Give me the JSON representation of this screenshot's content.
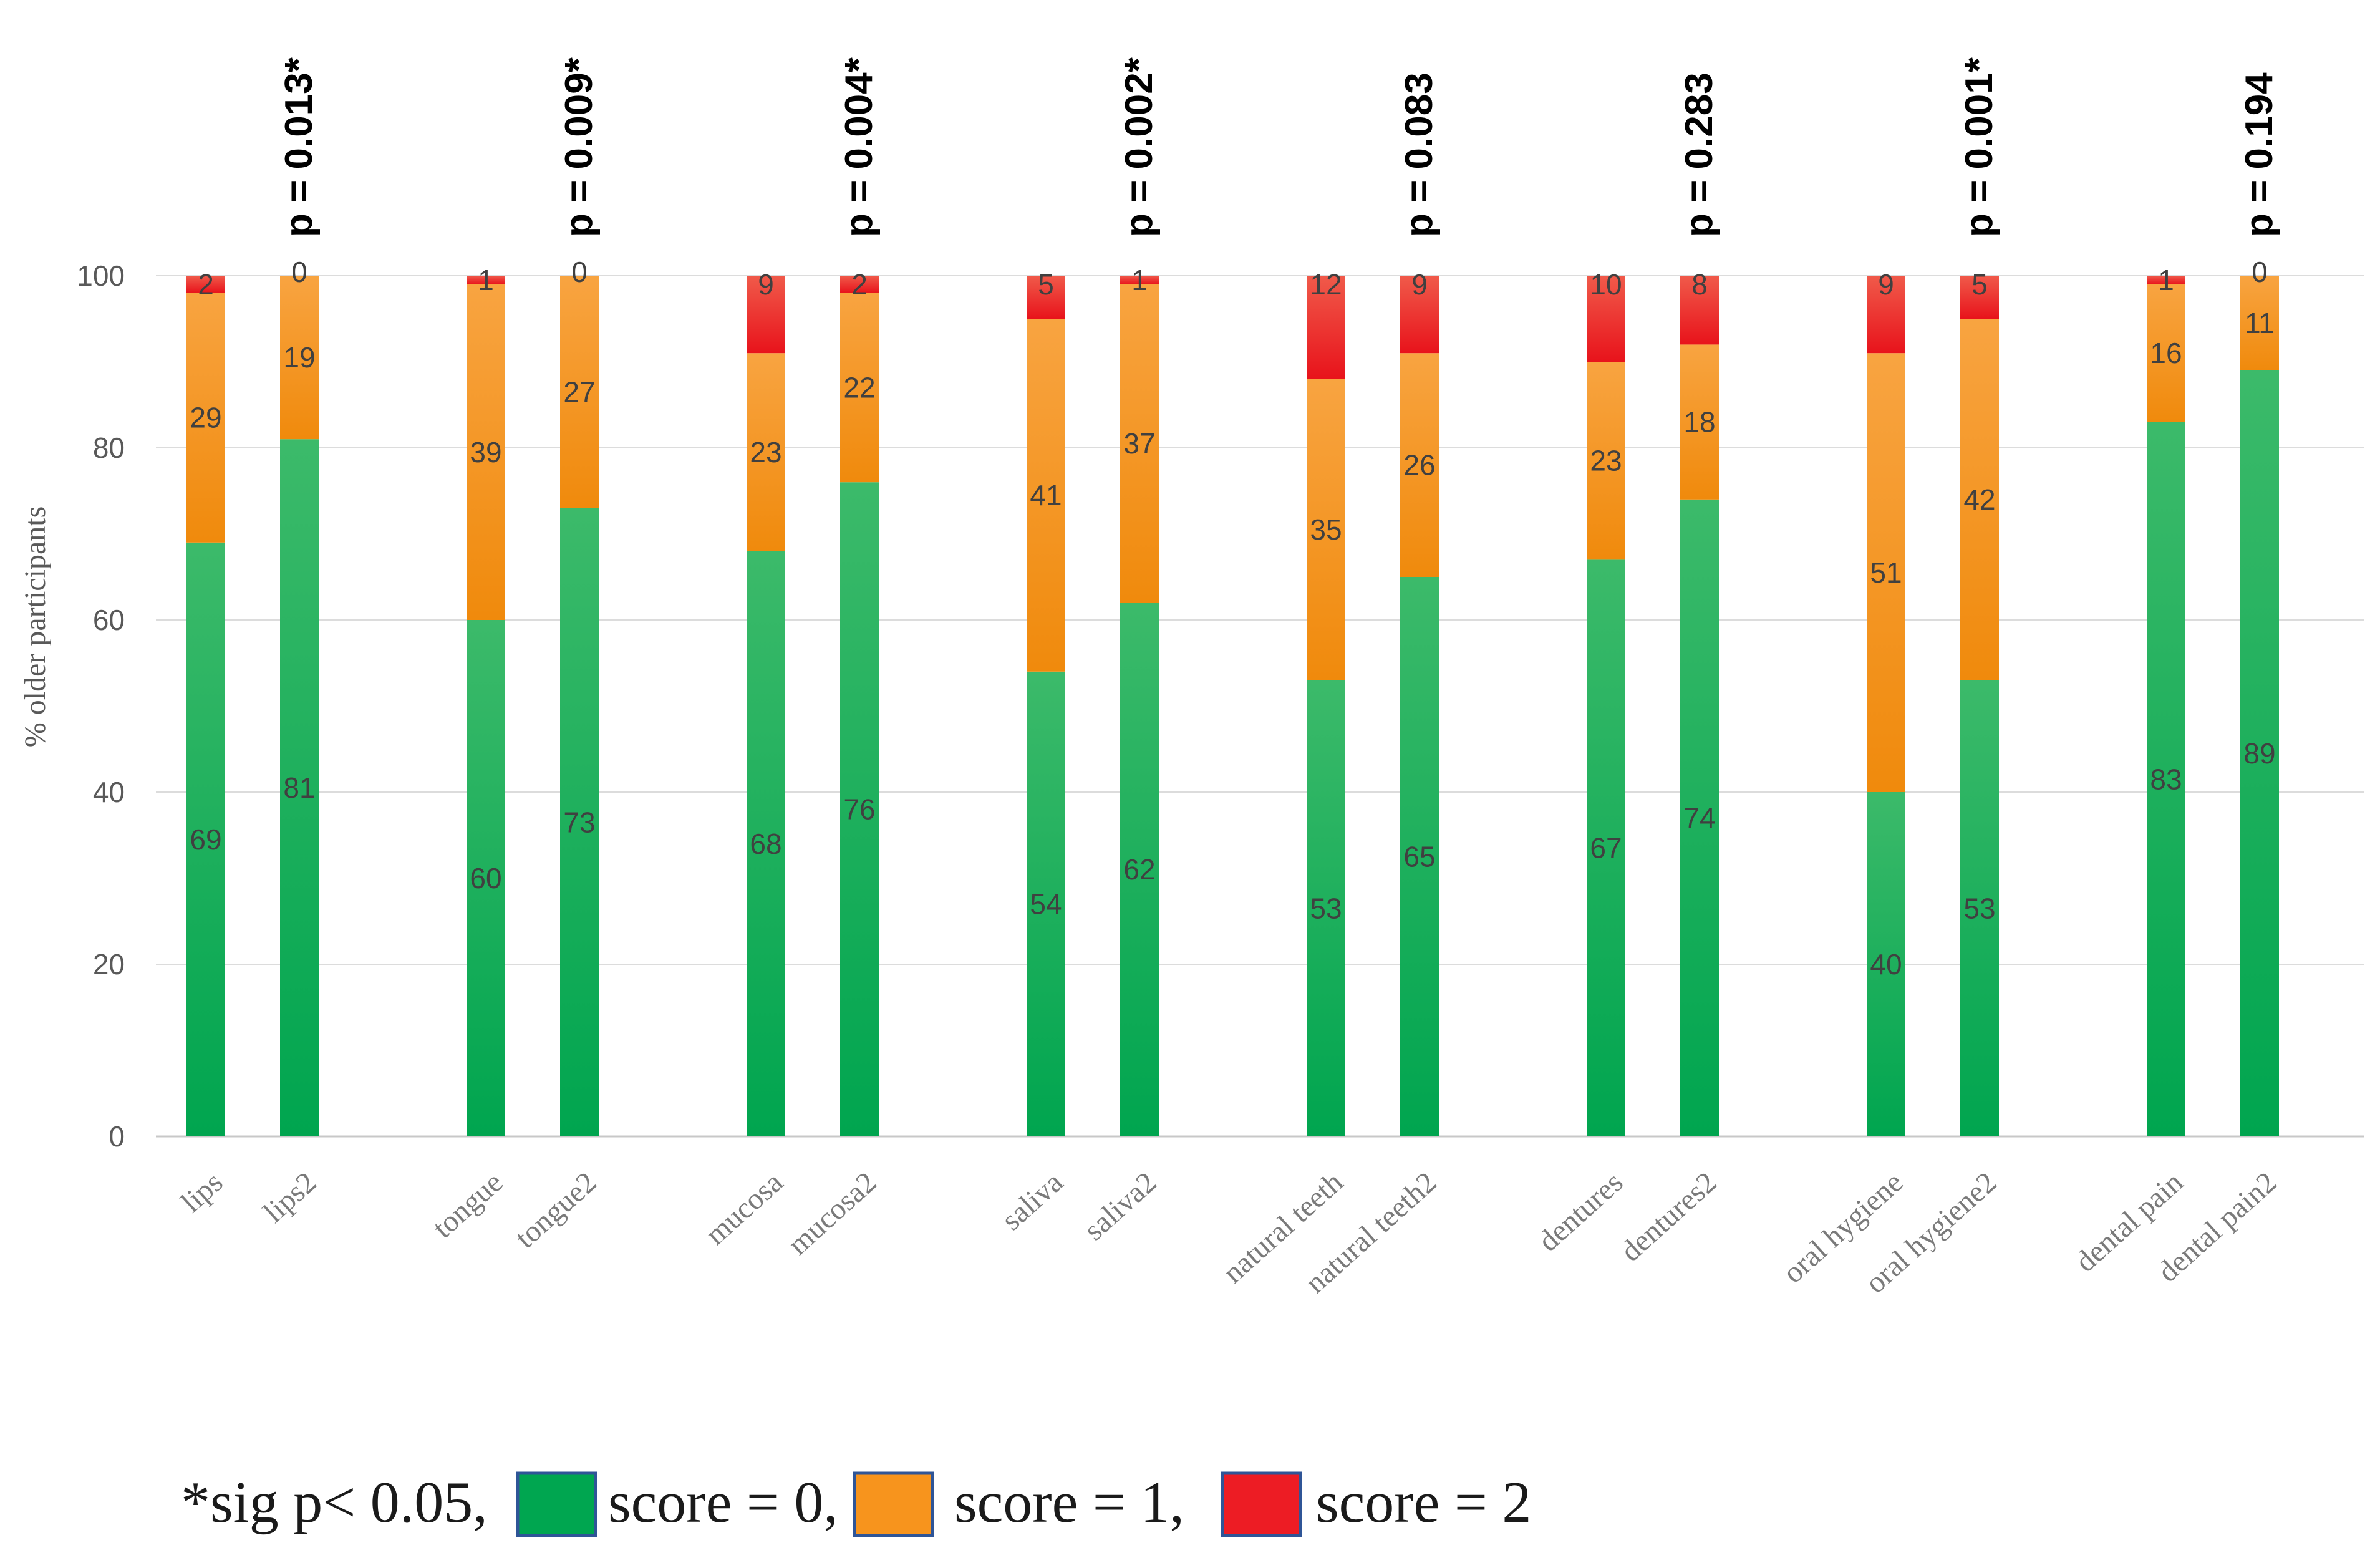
{
  "chart_data": {
    "type": "bar",
    "stacked": true,
    "ylabel": "% older participants",
    "ylim": [
      0,
      100
    ],
    "yticks": [
      0,
      20,
      40,
      60,
      80,
      100
    ],
    "grid": true,
    "legend_position": "bottom-left",
    "legend_note": "*sig p< 0.05,",
    "categories": [
      "lips",
      "lips2",
      "tongue",
      "tongue2",
      "mucosa",
      "mucosa2",
      "saliva",
      "saliva2",
      "natural teeth",
      "natural teeth2",
      "dentures",
      "dentures2",
      "oral hygiene",
      "oral hygiene2",
      "dental pain",
      "dental pain2"
    ],
    "series": [
      {
        "name": "score = 0,",
        "color": "#00a650",
        "values": [
          69,
          81,
          60,
          73,
          68,
          76,
          54,
          62,
          53,
          65,
          67,
          74,
          40,
          53,
          83,
          89
        ]
      },
      {
        "name": "score = 1,",
        "color": "#f7941d",
        "values": [
          29,
          19,
          39,
          27,
          23,
          22,
          41,
          37,
          35,
          26,
          23,
          18,
          51,
          42,
          16,
          11
        ]
      },
      {
        "name": "score = 2",
        "color": "#ed1c24",
        "values": [
          2,
          0,
          1,
          0,
          9,
          2,
          5,
          1,
          12,
          9,
          10,
          8,
          9,
          5,
          1,
          0
        ]
      }
    ],
    "p_values": [
      {
        "label": "p = 0.013*",
        "category": "lips2"
      },
      {
        "label": "p = 0.009*",
        "category": "tongue2"
      },
      {
        "label": "p = 0.004*",
        "category": "mucosa2"
      },
      {
        "label": "p = 0.002*",
        "category": "saliva2"
      },
      {
        "label": "p = 0.083",
        "category": "natural teeth2"
      },
      {
        "label": "p = 0.283",
        "category": "dentures2"
      },
      {
        "label": "p = 0.001*",
        "category": "oral hygiene2"
      },
      {
        "label": "p = 0.194",
        "category": "dental pain2"
      }
    ]
  }
}
